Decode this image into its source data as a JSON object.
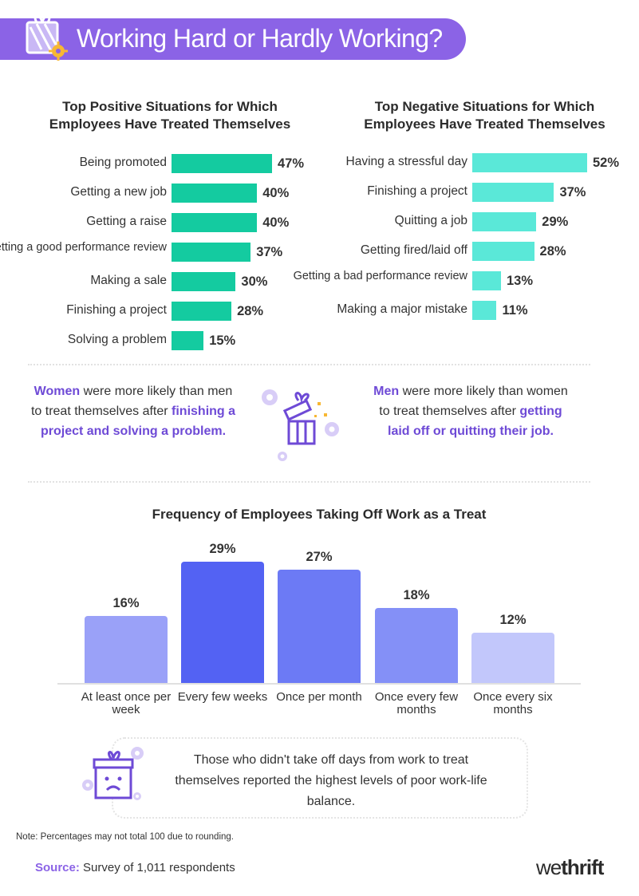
{
  "header": {
    "title": "Working Hard or Hardly Working?"
  },
  "colors": {
    "header_bg": "#8b63e6",
    "positive_bar": "#14cba0",
    "negative_bar": "#5ae8d8",
    "highlight_text": "#6e4ad6",
    "freq_bars": [
      "#9aa1f8",
      "#5362f3",
      "#6c7af5",
      "#8490f7",
      "#c2c7fb"
    ]
  },
  "callouts": {
    "women": {
      "lead": "Women",
      "mid": " were more likely than men to treat themselves after ",
      "tail": "finishing a project and solving a problem."
    },
    "men": {
      "lead": "Men",
      "mid": " were more likely than women to treat themselves after ",
      "tail": "getting laid off or quitting their job."
    }
  },
  "note": {
    "text": "Those who didn't take off days from work to treat themselves reported the highest levels of poor work-life balance."
  },
  "footnote": "Note: Percentages may not total 100 due to rounding.",
  "source": {
    "label": "Source:",
    "text": " Survey of 1,011 respondents"
  },
  "logo": {
    "light": "we",
    "bold": "thrift"
  },
  "chart_data": [
    {
      "type": "bar",
      "orientation": "horizontal",
      "title": "Top Positive Situations for Which Employees Have Treated Themselves",
      "categories": [
        "Being promoted",
        "Getting a new job",
        "Getting a raise",
        "Getting a good performance review",
        "Making a sale",
        "Finishing a project",
        "Solving a problem"
      ],
      "values": [
        47,
        40,
        40,
        37,
        30,
        28,
        15
      ],
      "value_labels": [
        "47%",
        "40%",
        "40%",
        "37%",
        "30%",
        "28%",
        "15%"
      ],
      "unit": "%",
      "xlim": [
        0,
        47
      ]
    },
    {
      "type": "bar",
      "orientation": "horizontal",
      "title": "Top Negative Situations for Which Employees Have Treated Themselves",
      "categories": [
        "Having a stressful day",
        "Finishing a project",
        "Quitting a job",
        "Getting fired/laid off",
        "Getting a bad performance review",
        "Making a major mistake"
      ],
      "values": [
        52,
        37,
        29,
        28,
        13,
        11
      ],
      "value_labels": [
        "52%",
        "37%",
        "29%",
        "28%",
        "13%",
        "11%"
      ],
      "unit": "%",
      "xlim": [
        0,
        52
      ]
    },
    {
      "type": "bar",
      "orientation": "vertical",
      "title": "Frequency of Employees Taking Off Work as a Treat",
      "categories": [
        "At least once per week",
        "Every few weeks",
        "Once per month",
        "Once every few months",
        "Once every six months"
      ],
      "values": [
        16,
        29,
        27,
        18,
        12
      ],
      "value_labels": [
        "16%",
        "29%",
        "27%",
        "18%",
        "12%"
      ],
      "unit": "%",
      "ylim": [
        0,
        29
      ]
    }
  ]
}
